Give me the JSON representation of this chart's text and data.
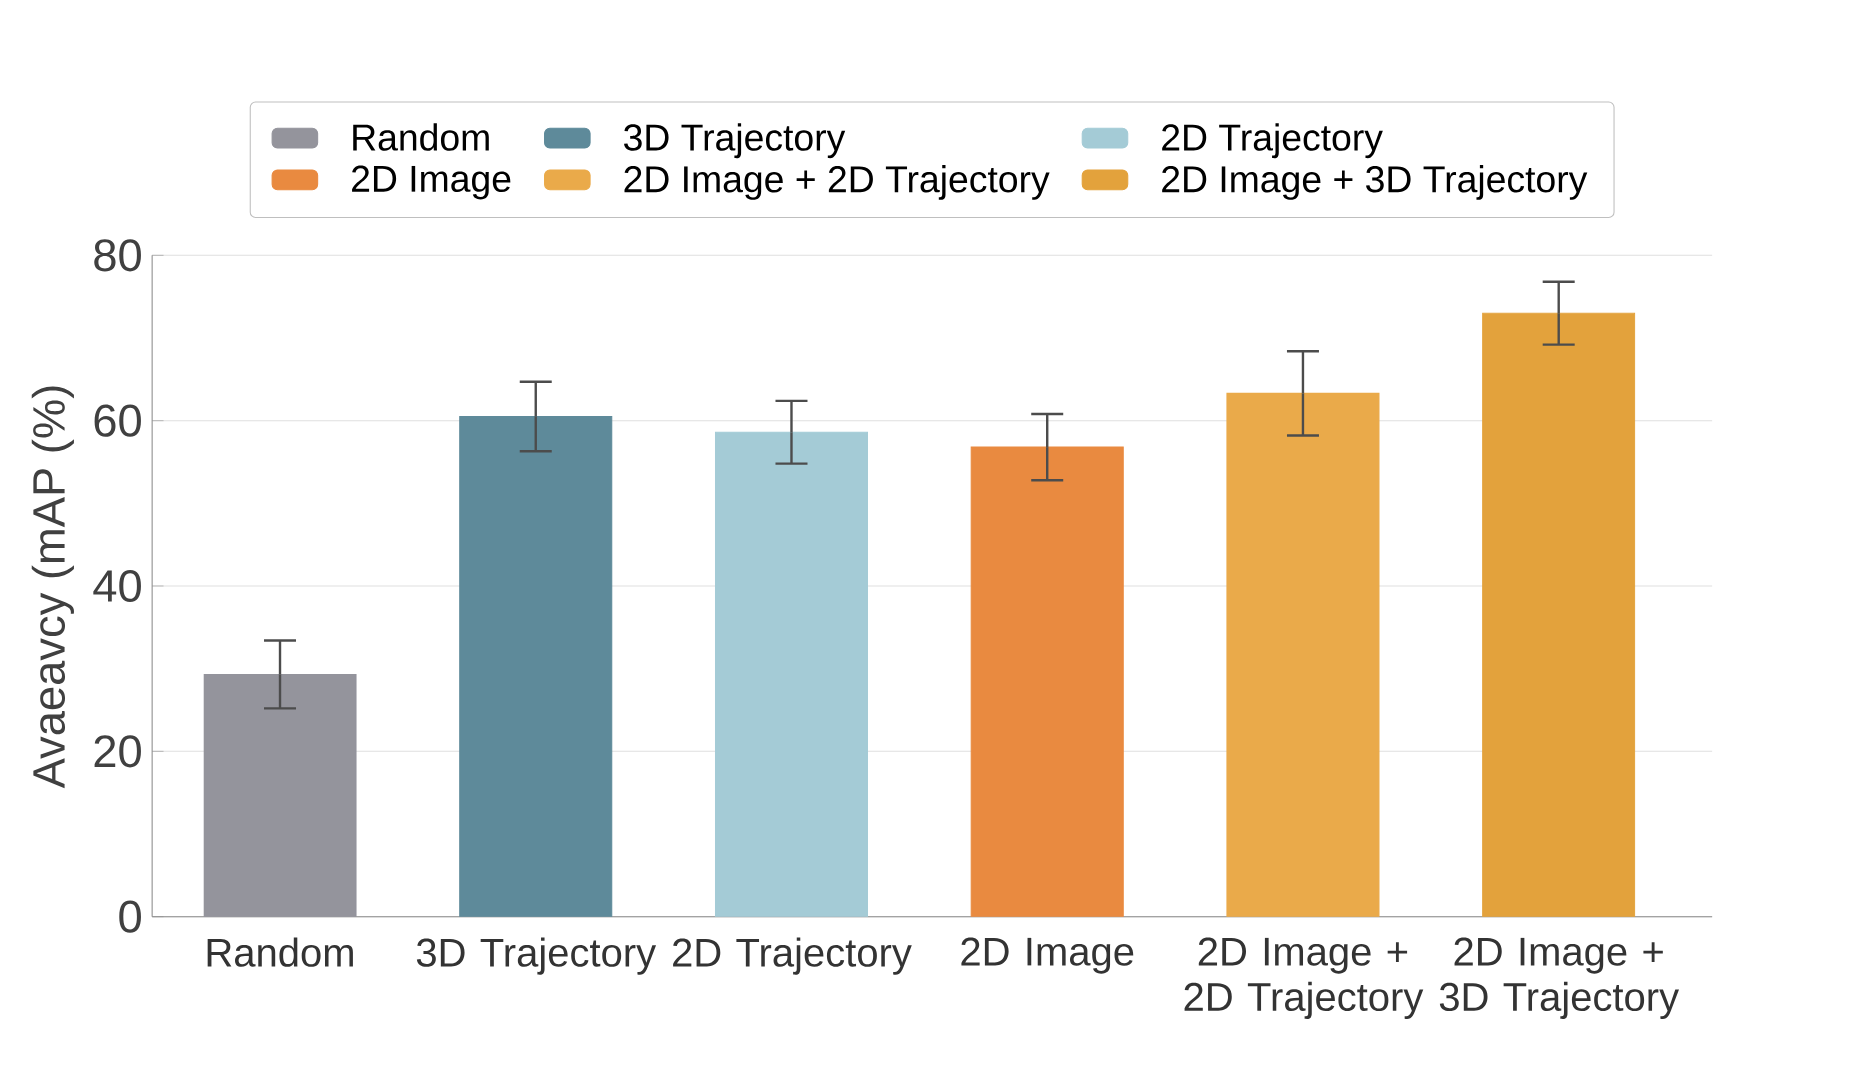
{
  "chart_data": {
    "type": "bar",
    "ylabel": "Avaeavcy (mAP (%)",
    "categories": [
      "Random",
      "3D Trajectory",
      "2D Trajectory",
      "2D Image",
      "2D Image + 2D Trajectory",
      "2D Image + 3D Trajectory"
    ],
    "series": [
      {
        "name": "Random",
        "color": "#94949c",
        "values": [
          29.3,
          null,
          null,
          null,
          null,
          null
        ],
        "errors": [
          4.1,
          null,
          null,
          null,
          null,
          null
        ]
      },
      {
        "name": "3D Trajectory",
        "color": "#5e8a9a",
        "values": [
          null,
          60.5,
          null,
          null,
          null,
          null
        ],
        "errors": [
          null,
          4.2,
          null,
          null,
          null,
          null
        ]
      },
      {
        "name": "2D Trajectory",
        "color": "#a4cbd6",
        "values": [
          null,
          null,
          58.6,
          null,
          null,
          null
        ],
        "errors": [
          null,
          null,
          3.8,
          null,
          null,
          null
        ]
      },
      {
        "name": "2D Image",
        "color": "#e98a40",
        "values": [
          null,
          null,
          null,
          56.8,
          null,
          null
        ],
        "errors": [
          null,
          null,
          null,
          4.0,
          null,
          null
        ]
      },
      {
        "name": "2D Image + 2D Trajectory",
        "color": "#eaaa4a",
        "values": [
          null,
          null,
          null,
          null,
          63.3,
          null
        ],
        "errors": [
          null,
          null,
          null,
          null,
          5.1,
          null
        ]
      },
      {
        "name": "2D Image + 3D Trajectory",
        "color": "#e3a23c",
        "values": [
          null,
          null,
          null,
          null,
          null,
          73.0
        ],
        "errors": [
          null,
          null,
          null,
          null,
          null,
          3.8
        ]
      }
    ],
    "ylim": [
      0,
      80
    ],
    "yticks": [
      0,
      20,
      40,
      60,
      80
    ],
    "grid": "y",
    "legend": "top"
  }
}
